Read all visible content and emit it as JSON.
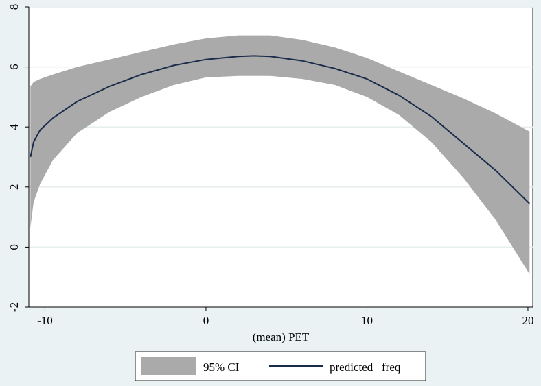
{
  "chart_data": {
    "type": "line",
    "xlabel": "(mean) PET",
    "ylabel": "",
    "xlim": [
      -11,
      20.3
    ],
    "ylim": [
      -2,
      8
    ],
    "xticks": [
      -10,
      0,
      10,
      20
    ],
    "yticks": [
      -2,
      0,
      2,
      4,
      6,
      8
    ],
    "grid": "horizontal",
    "legend_position": "bottom",
    "colors": {
      "background": "#eaf2f3",
      "plot_background": "#ffffff",
      "ci_band": "#aaaaaa",
      "line": "#1a2c4a",
      "grid": "#e6eeee"
    },
    "series": [
      {
        "name": "95% CI",
        "kind": "band",
        "x": [
          -10.9,
          -10.7,
          -10.3,
          -9.5,
          -8,
          -6,
          -4,
          -2,
          0,
          2,
          4,
          6,
          8,
          10,
          12,
          14,
          16,
          18,
          20.1
        ],
        "lower": [
          0.65,
          1.5,
          2.1,
          2.9,
          3.8,
          4.5,
          5.0,
          5.4,
          5.65,
          5.7,
          5.7,
          5.6,
          5.4,
          5.0,
          4.4,
          3.5,
          2.3,
          0.9,
          -0.9
        ],
        "upper": [
          5.35,
          5.5,
          5.6,
          5.75,
          6.0,
          6.25,
          6.5,
          6.75,
          6.95,
          7.05,
          7.05,
          6.9,
          6.65,
          6.3,
          5.85,
          5.4,
          4.95,
          4.45,
          3.85
        ]
      },
      {
        "name": "predicted _freq",
        "kind": "line",
        "x": [
          -10.9,
          -10.7,
          -10.3,
          -9.5,
          -8,
          -6,
          -4,
          -2,
          0,
          2,
          3,
          4,
          6,
          8,
          10,
          12,
          14,
          16,
          18,
          20.1
        ],
        "y": [
          3.0,
          3.5,
          3.9,
          4.3,
          4.85,
          5.35,
          5.75,
          6.05,
          6.25,
          6.35,
          6.37,
          6.35,
          6.2,
          5.95,
          5.6,
          5.05,
          4.35,
          3.45,
          2.55,
          1.45
        ]
      }
    ]
  }
}
